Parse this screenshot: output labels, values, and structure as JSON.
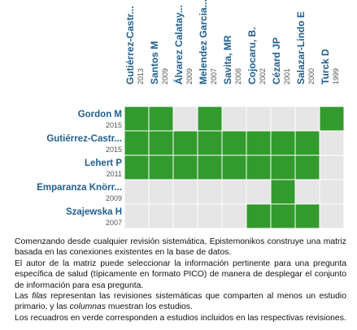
{
  "columns": [
    {
      "name": "Gutiérrez-Castr...",
      "year": "2013"
    },
    {
      "name": "Santos M",
      "year": "2009"
    },
    {
      "name": "Álvarez Calatay...",
      "year": "2009"
    },
    {
      "name": "Melendez Garcia...",
      "year": "2007"
    },
    {
      "name": "Savita, MR",
      "year": "2008"
    },
    {
      "name": "Cojocaru, B.",
      "year": "2002"
    },
    {
      "name": "Cézard JP",
      "year": "2001"
    },
    {
      "name": "Salazar-Lindo E",
      "year": "2000"
    },
    {
      "name": "Turck D",
      "year": "1999"
    }
  ],
  "rows": [
    {
      "name": "Gordon M",
      "year": "2015"
    },
    {
      "name": "Gutiérrez-Castr...",
      "year": "2015"
    },
    {
      "name": "Lehert P",
      "year": "2011"
    },
    {
      "name": "Emparanza Knörr...",
      "year": "2009"
    },
    {
      "name": "Szajewska H",
      "year": "2007"
    }
  ],
  "matrix": [
    [
      1,
      1,
      0,
      1,
      0,
      0,
      0,
      0,
      1
    ],
    [
      1,
      1,
      1,
      1,
      1,
      1,
      1,
      1,
      0
    ],
    [
      1,
      1,
      1,
      1,
      1,
      1,
      1,
      1,
      0
    ],
    [
      0,
      0,
      0,
      0,
      0,
      0,
      1,
      0,
      0
    ],
    [
      0,
      0,
      0,
      0,
      0,
      1,
      1,
      1,
      0
    ]
  ],
  "description": [
    "Comenzando desde cualquier revisión sistemática, Epistemonikos construye una matriz basada en las conexiones existentes en la base de datos.",
    "El autor de la matriz puede seleccionar la información pertinente para una pregunta específica de salud (típicamente en formato PICO) de manera de desplegar el conjunto de información para esa pregunta.",
    [
      "Las ",
      "filas",
      " representan las revisiones sistemáticas que comparten al menos un estudio primario, y las ",
      "columnas",
      " muestran los estudios."
    ],
    "Los recuadros en verde corresponden a estudios incluidos en las respectivas revisiones."
  ]
}
